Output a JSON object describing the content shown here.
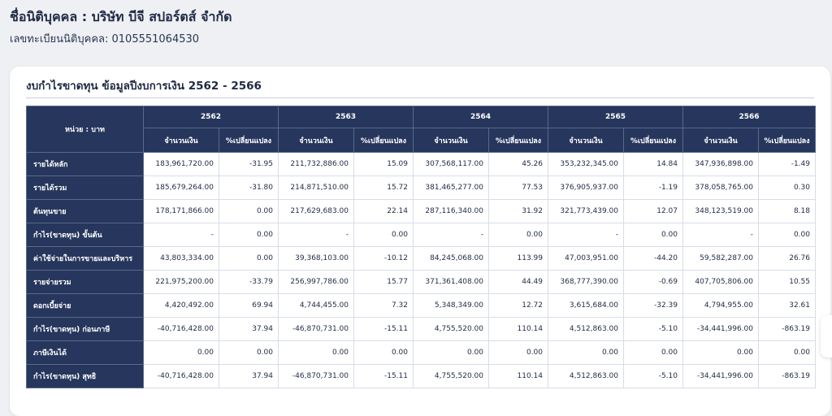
{
  "company": {
    "title": "ชื่อนิติบุคคล : บริษัท บีจี สปอร์ตส์ จำกัด",
    "registration": "เลขทะเบียนนิติบุคคล: 0105551064530"
  },
  "card": {
    "title": "งบกำไรขาดทุน ข้อมูลปีงบการเงิน 2562 - 2566"
  },
  "table": {
    "unit_label": "หน่วย : บาท",
    "years": [
      "2562",
      "2563",
      "2564",
      "2565",
      "2566"
    ],
    "amount_label": "จำนวนเงิน",
    "change_label": "%เปลี่ยนแปลง",
    "rows": [
      {
        "label": "รายได้หลัก",
        "cells": [
          "183,961,720.00",
          "-31.95",
          "211,732,886.00",
          "15.09",
          "307,568,117.00",
          "45.26",
          "353,232,345.00",
          "14.84",
          "347,936,898.00",
          "-1.49"
        ]
      },
      {
        "label": "รายได้รวม",
        "cells": [
          "185,679,264.00",
          "-31.80",
          "214,871,510.00",
          "15.72",
          "381,465,277.00",
          "77.53",
          "376,905,937.00",
          "-1.19",
          "378,058,765.00",
          "0.30"
        ]
      },
      {
        "label": "ต้นทุนขาย",
        "cells": [
          "178,171,866.00",
          "0.00",
          "217,629,683.00",
          "22.14",
          "287,116,340.00",
          "31.92",
          "321,773,439.00",
          "12.07",
          "348,123,519.00",
          "8.18"
        ]
      },
      {
        "label": "กำไร(ขาดทุน) ขั้นต้น",
        "cells": [
          "-",
          "0.00",
          "-",
          "0.00",
          "-",
          "0.00",
          "-",
          "0.00",
          "-",
          "0.00"
        ]
      },
      {
        "label": "ค่าใช้จ่ายในการขายและบริหาร",
        "cells": [
          "43,803,334.00",
          "0.00",
          "39,368,103.00",
          "-10.12",
          "84,245,068.00",
          "113.99",
          "47,003,951.00",
          "-44.20",
          "59,582,287.00",
          "26.76"
        ]
      },
      {
        "label": "รายจ่ายรวม",
        "cells": [
          "221,975,200.00",
          "-33.79",
          "256,997,786.00",
          "15.77",
          "371,361,408.00",
          "44.49",
          "368,777,390.00",
          "-0.69",
          "407,705,806.00",
          "10.55"
        ]
      },
      {
        "label": "ดอกเบี้ยจ่าย",
        "cells": [
          "4,420,492.00",
          "69.94",
          "4,744,455.00",
          "7.32",
          "5,348,349.00",
          "12.72",
          "3,615,684.00",
          "-32.39",
          "4,794,955.00",
          "32.61"
        ]
      },
      {
        "label": "กำไร(ขาดทุน) ก่อนภาษี",
        "cells": [
          "-40,716,428.00",
          "37.94",
          "-46,870,731.00",
          "-15.11",
          "4,755,520.00",
          "110.14",
          "4,512,863.00",
          "-5.10",
          "-34,441,996.00",
          "-863.19"
        ]
      },
      {
        "label": "ภาษีเงินได้",
        "cells": [
          "0.00",
          "0.00",
          "0.00",
          "0.00",
          "0.00",
          "0.00",
          "0.00",
          "0.00",
          "0.00",
          "0.00"
        ]
      },
      {
        "label": "กำไร(ขาดทุน) สุทธิ",
        "cells": [
          "-40,716,428.00",
          "37.94",
          "-46,870,731.00",
          "-15.11",
          "4,755,520.00",
          "110.14",
          "4,512,863.00",
          "-5.10",
          "-34,441,996.00",
          "-863.19"
        ]
      }
    ]
  }
}
